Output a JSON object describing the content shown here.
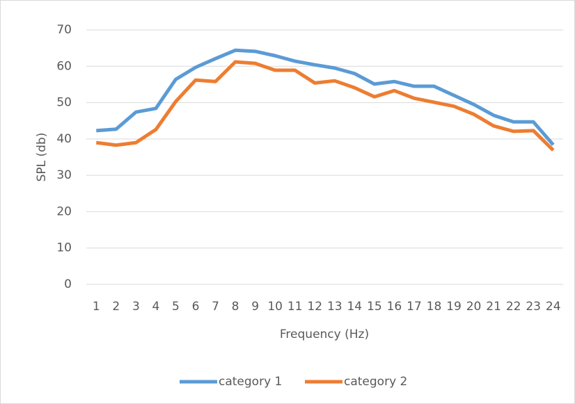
{
  "chart_data": {
    "type": "line",
    "y_label": "SPL (db)",
    "x_label": "Frequency (Hz)",
    "categories": [
      "1",
      "2",
      "3",
      "4",
      "5",
      "6",
      "7",
      "8",
      "9",
      "10",
      "11",
      "12",
      "13",
      "14",
      "15",
      "16",
      "17",
      "18",
      "19",
      "20",
      "21",
      "22",
      "23",
      "24"
    ],
    "series": [
      {
        "name": "category 1",
        "color": "#5b9bd5",
        "values": [
          42.3,
          42.7,
          47.4,
          48.4,
          56.4,
          59.7,
          62.1,
          64.4,
          64.1,
          62.9,
          61.4,
          60.4,
          59.5,
          58,
          55.1,
          55.8,
          54.5,
          54.5,
          52,
          49.5,
          46.5,
          44.7,
          44.7,
          38.4
        ]
      },
      {
        "name": "category 2",
        "color": "#ed7d31",
        "values": [
          39,
          38.3,
          39,
          42.6,
          50.3,
          56.2,
          55.8,
          61.2,
          60.8,
          58.9,
          58.9,
          55.4,
          56,
          54.1,
          51.6,
          53.3,
          51.2,
          50.1,
          49,
          46.8,
          43.6,
          42.1,
          42.3,
          36.9
        ]
      }
    ],
    "ylim": [
      0,
      70
    ],
    "yticks": [
      0,
      10,
      20,
      30,
      40,
      50,
      60,
      70
    ],
    "grid": true,
    "legend": "bottom"
  }
}
